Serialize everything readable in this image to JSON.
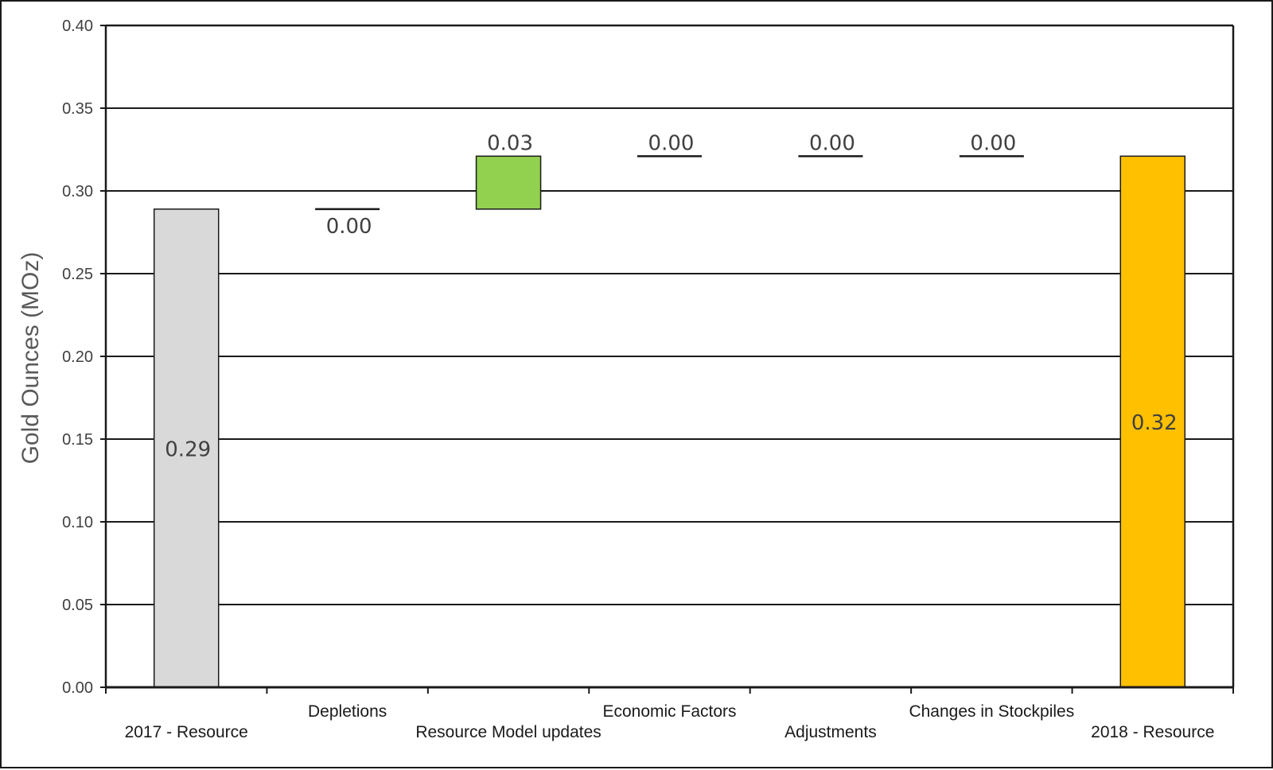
{
  "chart_data": {
    "type": "waterfall",
    "title": "",
    "xlabel": "",
    "ylabel": "Gold Ounces (MOz)",
    "ylim": [
      0,
      0.4
    ],
    "ytick_step": 0.05,
    "yticks": [
      "0.00",
      "0.05",
      "0.10",
      "0.15",
      "0.20",
      "0.25",
      "0.30",
      "0.35",
      "0.40"
    ],
    "grid": true,
    "categories": [
      "2017 - Resource",
      "Depletions",
      "Resource Model updates",
      "Economic Factors",
      "Adjustments",
      "Changes in Stockpiles",
      "2018 - Resource"
    ],
    "series": [
      {
        "name": "Gold Ounces",
        "values": [
          0.29,
          0.0,
          0.03,
          0.0,
          0.0,
          0.0,
          0.32
        ],
        "bases": [
          0,
          0.289,
          0.289,
          0.321,
          0.321,
          0.321,
          0
        ],
        "tops": [
          0.289,
          0.289,
          0.321,
          0.321,
          0.321,
          0.321,
          0.321
        ],
        "labels": [
          "0.29",
          "0.00",
          "0.03",
          "0.00",
          "0.00",
          "0.00",
          "0.32"
        ],
        "kinds": [
          "total",
          "step",
          "step",
          "step",
          "step",
          "step",
          "total"
        ],
        "colors": [
          "#d9d9d9",
          "#000000",
          "#92d050",
          "#000000",
          "#000000",
          "#000000",
          "#ffc000"
        ]
      }
    ]
  }
}
